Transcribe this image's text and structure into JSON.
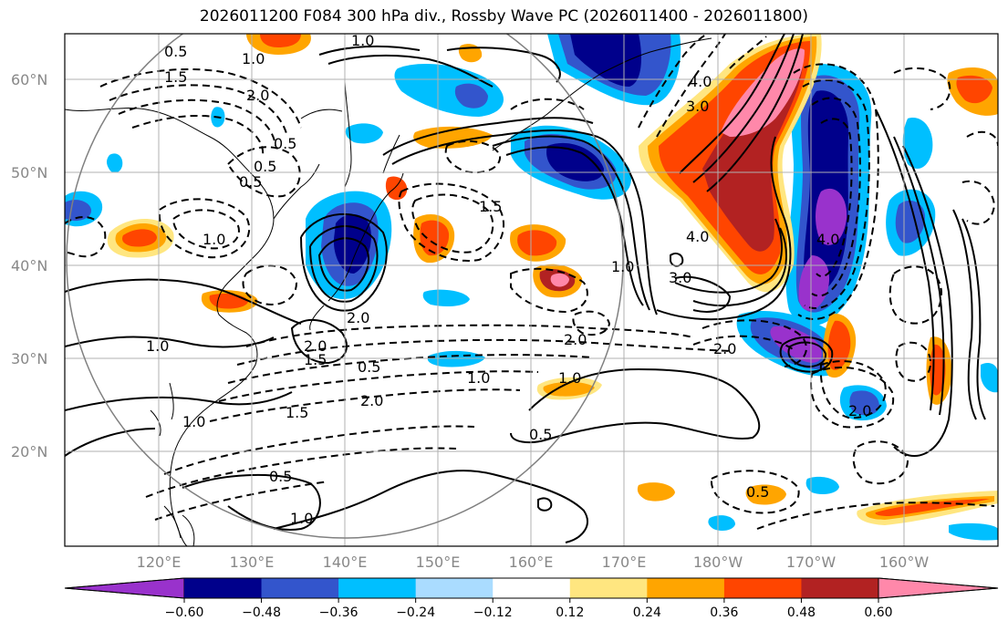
{
  "title": "2026011200 F084 300 hPa div., Rossby Wave PC (2026011400 - 2026011800)",
  "map": {
    "lat_labels": [
      "60°N",
      "50°N",
      "40°N",
      "30°N",
      "20°N"
    ],
    "lon_labels": [
      "120°E",
      "130°E",
      "140°E",
      "150°E",
      "160°E",
      "170°E",
      "180°W",
      "170°W",
      "160°W"
    ],
    "contour_labels": [
      "1.0",
      "0.5",
      "1.5",
      "2.0",
      "0.5",
      "0.5",
      "1.0",
      "0.5",
      "4.0",
      "3.0",
      "4.0",
      "3.0",
      "1.5",
      "1.0",
      "2.0",
      "1.0",
      "0.5",
      "2.0",
      "1.5",
      "1.0",
      "0.5",
      "1.0",
      "2.0",
      "1.5",
      "2.0",
      "0.5",
      "1.0",
      "1.0",
      "1.0",
      "2.0",
      "4.0",
      "2.0",
      "0.5"
    ]
  },
  "colorbar": {
    "ticks": [
      "−0.60",
      "−0.48",
      "−0.36",
      "−0.24",
      "−0.12",
      "0.12",
      "0.24",
      "0.36",
      "0.48",
      "0.60"
    ],
    "colors": [
      "#9932cc",
      "#00008b",
      "#3355cc",
      "#00bfff",
      "#aadcff",
      "#ffffff",
      "#ffe680",
      "#ffa500",
      "#ff4500",
      "#b22222",
      "#ff88aa"
    ]
  }
}
